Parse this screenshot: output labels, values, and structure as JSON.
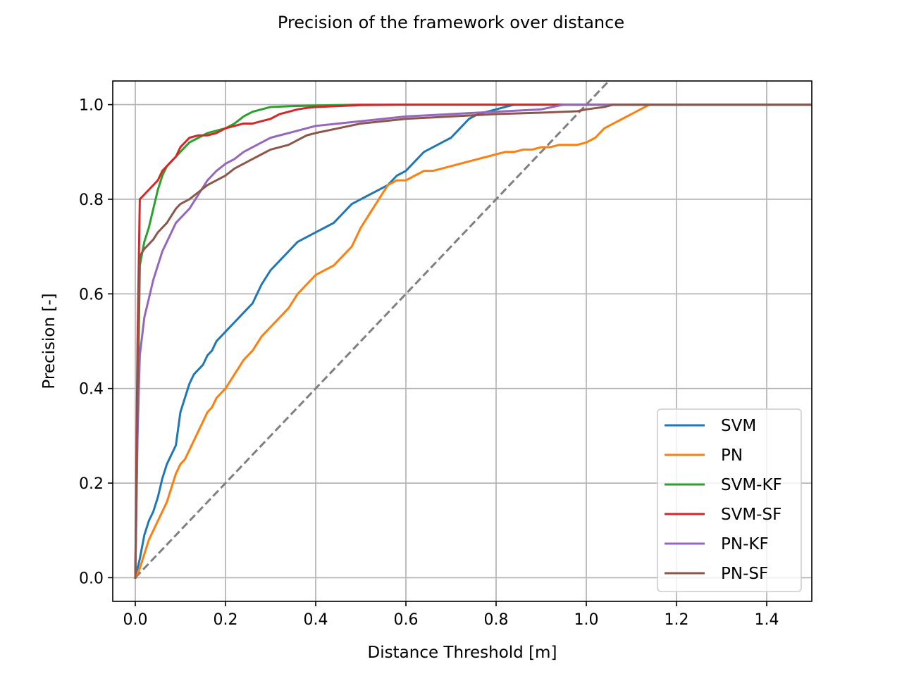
{
  "chart_data": {
    "type": "line",
    "title": "Precision of the framework over distance",
    "xlabel": "Distance Threshold [m]",
    "ylabel": "Precision [-]",
    "xlim": [
      -0.05,
      1.5
    ],
    "ylim": [
      -0.05,
      1.05
    ],
    "xticks": [
      0.0,
      0.2,
      0.4,
      0.6,
      0.8,
      1.0,
      1.2,
      1.4
    ],
    "xtick_labels": [
      "0.0",
      "0.2",
      "0.4",
      "0.6",
      "0.8",
      "1.0",
      "1.2",
      "1.4"
    ],
    "yticks": [
      0.0,
      0.2,
      0.4,
      0.6,
      0.8,
      1.0
    ],
    "ytick_labels": [
      "0.0",
      "0.2",
      "0.4",
      "0.6",
      "0.8",
      "1.0"
    ],
    "grid": true,
    "legend_position": "lower-right",
    "reference_line": {
      "style": "dashed",
      "color": "#808080",
      "x": [
        0.0,
        1.5
      ],
      "y": [
        0.0,
        1.5
      ]
    },
    "series": [
      {
        "name": "SVM",
        "color": "#1f77b4",
        "x": [
          0.0,
          0.01,
          0.02,
          0.03,
          0.04,
          0.05,
          0.06,
          0.07,
          0.08,
          0.09,
          0.1,
          0.11,
          0.12,
          0.13,
          0.14,
          0.15,
          0.16,
          0.17,
          0.18,
          0.19,
          0.2,
          0.22,
          0.24,
          0.26,
          0.28,
          0.3,
          0.32,
          0.34,
          0.36,
          0.38,
          0.4,
          0.42,
          0.44,
          0.46,
          0.48,
          0.5,
          0.52,
          0.54,
          0.56,
          0.58,
          0.6,
          0.62,
          0.64,
          0.66,
          0.68,
          0.7,
          0.72,
          0.74,
          0.76,
          0.78,
          0.8,
          0.82,
          0.84,
          0.86,
          0.9,
          1.0,
          1.5
        ],
        "y": [
          0.0,
          0.04,
          0.09,
          0.12,
          0.14,
          0.17,
          0.21,
          0.24,
          0.26,
          0.28,
          0.35,
          0.38,
          0.41,
          0.43,
          0.44,
          0.45,
          0.47,
          0.48,
          0.5,
          0.51,
          0.52,
          0.54,
          0.56,
          0.58,
          0.62,
          0.65,
          0.67,
          0.69,
          0.71,
          0.72,
          0.73,
          0.74,
          0.75,
          0.77,
          0.79,
          0.8,
          0.81,
          0.82,
          0.83,
          0.85,
          0.86,
          0.88,
          0.9,
          0.91,
          0.92,
          0.93,
          0.95,
          0.97,
          0.98,
          0.985,
          0.99,
          0.995,
          1.0,
          1.0,
          1.0,
          1.0,
          1.0
        ]
      },
      {
        "name": "PN",
        "color": "#ff7f0e",
        "x": [
          0.0,
          0.01,
          0.02,
          0.03,
          0.04,
          0.05,
          0.06,
          0.07,
          0.08,
          0.09,
          0.1,
          0.11,
          0.12,
          0.13,
          0.14,
          0.15,
          0.16,
          0.17,
          0.18,
          0.19,
          0.2,
          0.22,
          0.24,
          0.26,
          0.28,
          0.3,
          0.32,
          0.34,
          0.36,
          0.38,
          0.4,
          0.42,
          0.44,
          0.46,
          0.48,
          0.5,
          0.52,
          0.54,
          0.56,
          0.58,
          0.6,
          0.62,
          0.64,
          0.66,
          0.68,
          0.7,
          0.72,
          0.74,
          0.76,
          0.78,
          0.8,
          0.82,
          0.84,
          0.86,
          0.88,
          0.9,
          0.92,
          0.94,
          0.96,
          0.98,
          1.0,
          1.02,
          1.04,
          1.06,
          1.08,
          1.1,
          1.12,
          1.14,
          1.5
        ],
        "y": [
          0.0,
          0.02,
          0.05,
          0.08,
          0.1,
          0.12,
          0.14,
          0.16,
          0.19,
          0.22,
          0.24,
          0.25,
          0.27,
          0.29,
          0.31,
          0.33,
          0.35,
          0.36,
          0.38,
          0.39,
          0.4,
          0.43,
          0.46,
          0.48,
          0.51,
          0.53,
          0.55,
          0.57,
          0.6,
          0.62,
          0.64,
          0.65,
          0.66,
          0.68,
          0.7,
          0.74,
          0.77,
          0.8,
          0.83,
          0.84,
          0.84,
          0.85,
          0.86,
          0.86,
          0.865,
          0.87,
          0.875,
          0.88,
          0.885,
          0.89,
          0.895,
          0.9,
          0.9,
          0.905,
          0.905,
          0.91,
          0.91,
          0.915,
          0.915,
          0.915,
          0.92,
          0.93,
          0.95,
          0.96,
          0.97,
          0.98,
          0.99,
          1.0,
          1.0
        ]
      },
      {
        "name": "SVM-KF",
        "color": "#2ca02c",
        "x": [
          0.0,
          0.01,
          0.02,
          0.03,
          0.04,
          0.05,
          0.06,
          0.07,
          0.08,
          0.09,
          0.1,
          0.12,
          0.14,
          0.16,
          0.18,
          0.2,
          0.22,
          0.24,
          0.26,
          0.28,
          0.3,
          0.35,
          0.4,
          0.5,
          0.6,
          1.5
        ],
        "y": [
          0.0,
          0.66,
          0.71,
          0.74,
          0.78,
          0.82,
          0.85,
          0.87,
          0.88,
          0.89,
          0.9,
          0.92,
          0.93,
          0.94,
          0.945,
          0.95,
          0.96,
          0.975,
          0.985,
          0.99,
          0.995,
          0.997,
          0.998,
          1.0,
          1.0,
          1.0
        ]
      },
      {
        "name": "SVM-SF",
        "color": "#d62728",
        "x": [
          0.0,
          0.005,
          0.01,
          0.02,
          0.03,
          0.04,
          0.05,
          0.06,
          0.07,
          0.08,
          0.09,
          0.1,
          0.11,
          0.12,
          0.14,
          0.16,
          0.18,
          0.2,
          0.22,
          0.24,
          0.26,
          0.28,
          0.3,
          0.32,
          0.34,
          0.36,
          0.38,
          0.4,
          0.45,
          0.5,
          0.6,
          1.5
        ],
        "y": [
          0.0,
          0.5,
          0.8,
          0.81,
          0.82,
          0.83,
          0.84,
          0.86,
          0.87,
          0.88,
          0.89,
          0.91,
          0.92,
          0.93,
          0.935,
          0.935,
          0.94,
          0.95,
          0.955,
          0.96,
          0.96,
          0.965,
          0.97,
          0.98,
          0.985,
          0.99,
          0.993,
          0.995,
          0.997,
          0.999,
          1.0,
          1.0
        ]
      },
      {
        "name": "PN-KF",
        "color": "#9467bd",
        "x": [
          0.0,
          0.005,
          0.01,
          0.02,
          0.03,
          0.04,
          0.05,
          0.06,
          0.07,
          0.08,
          0.09,
          0.1,
          0.12,
          0.14,
          0.16,
          0.18,
          0.2,
          0.22,
          0.24,
          0.26,
          0.28,
          0.3,
          0.32,
          0.34,
          0.36,
          0.38,
          0.4,
          0.45,
          0.5,
          0.55,
          0.6,
          0.7,
          0.8,
          0.9,
          0.95,
          1.0,
          1.5
        ],
        "y": [
          0.0,
          0.3,
          0.47,
          0.55,
          0.59,
          0.63,
          0.66,
          0.69,
          0.71,
          0.73,
          0.75,
          0.76,
          0.78,
          0.81,
          0.84,
          0.86,
          0.875,
          0.885,
          0.9,
          0.91,
          0.92,
          0.93,
          0.935,
          0.94,
          0.945,
          0.95,
          0.955,
          0.96,
          0.965,
          0.97,
          0.975,
          0.98,
          0.985,
          0.99,
          1.0,
          1.0,
          1.0
        ]
      },
      {
        "name": "PN-SF",
        "color": "#8c564b",
        "x": [
          0.0,
          0.005,
          0.01,
          0.02,
          0.03,
          0.04,
          0.05,
          0.06,
          0.07,
          0.08,
          0.09,
          0.1,
          0.12,
          0.14,
          0.16,
          0.18,
          0.2,
          0.22,
          0.24,
          0.26,
          0.28,
          0.3,
          0.32,
          0.34,
          0.36,
          0.38,
          0.4,
          0.45,
          0.5,
          0.55,
          0.6,
          0.7,
          0.8,
          0.9,
          0.98,
          1.0,
          1.04,
          1.06,
          1.5
        ],
        "y": [
          0.0,
          0.4,
          0.68,
          0.695,
          0.705,
          0.715,
          0.73,
          0.74,
          0.75,
          0.765,
          0.78,
          0.79,
          0.8,
          0.815,
          0.83,
          0.84,
          0.85,
          0.865,
          0.875,
          0.885,
          0.895,
          0.905,
          0.91,
          0.915,
          0.925,
          0.935,
          0.94,
          0.95,
          0.96,
          0.965,
          0.97,
          0.975,
          0.98,
          0.983,
          0.986,
          0.99,
          0.995,
          1.0,
          1.0
        ]
      }
    ]
  }
}
